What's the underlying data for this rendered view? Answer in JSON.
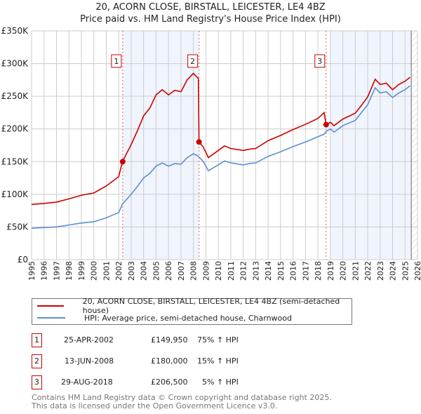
{
  "chart_data": {
    "type": "line",
    "title": "20, ACORN CLOSE, BIRSTALL, LEICESTER, LE4 4BZ",
    "subtitle": "Price paid vs. HM Land Registry's House Price Index (HPI)",
    "xlim": [
      1995,
      2026
    ],
    "ylim": [
      0,
      350000
    ],
    "x_ticks": [
      "1995",
      "1996",
      "1997",
      "1998",
      "1999",
      "2000",
      "2001",
      "2002",
      "2003",
      "2004",
      "2005",
      "2006",
      "2007",
      "2008",
      "2009",
      "2010",
      "2011",
      "2012",
      "2013",
      "2014",
      "2015",
      "2016",
      "2017",
      "2018",
      "2019",
      "2020",
      "2021",
      "2022",
      "2023",
      "2024",
      "2025",
      "2026"
    ],
    "y_ticks": [
      {
        "v": 0,
        "label": "£0"
      },
      {
        "v": 50,
        "label": "£50K"
      },
      {
        "v": 100,
        "label": "£100K"
      },
      {
        "v": 150,
        "label": "£150K"
      },
      {
        "v": 200,
        "label": "£200K"
      },
      {
        "v": 250,
        "label": "£250K"
      },
      {
        "v": 300,
        "label": "£300K"
      },
      {
        "v": 350,
        "label": "£350K"
      }
    ],
    "grid": true,
    "x": [
      1995,
      1996,
      1997,
      1998,
      1999,
      2000,
      2001,
      2002,
      2002.3,
      2003,
      2003.5,
      2004,
      2004.5,
      2005,
      2005.5,
      2006,
      2006.5,
      2007,
      2007.5,
      2008,
      2008.4,
      2008.45,
      2008.8,
      2009.2,
      2010,
      2010.5,
      2011,
      2012,
      2012.5,
      2013,
      2014,
      2015,
      2016,
      2017,
      2018,
      2018.5,
      2018.66,
      2019,
      2019.3,
      2020,
      2021,
      2021.5,
      2022,
      2022.6,
      2023,
      2023.5,
      2024,
      2024.5,
      2025,
      2025.4
    ],
    "series": [
      {
        "name": "20, ACORN CLOSE, BIRSTALL, LEICESTER, LE4 4BZ (semi-detached house)",
        "color": "#cc0000",
        "unit": "£K",
        "values": [
          84.5,
          86,
          88,
          93,
          98.5,
          102,
          112.6,
          127,
          149.95,
          176,
          197,
          220,
          232,
          252,
          260,
          252,
          259,
          257,
          275,
          285,
          277,
          180,
          172,
          156,
          167,
          174,
          170,
          167,
          169,
          170,
          182,
          190,
          199,
          207,
          216,
          225,
          206.5,
          210,
          205,
          215,
          224,
          236,
          249,
          276,
          268,
          270,
          260,
          268,
          273,
          279
        ]
      },
      {
        "name": "HPI: Average price, semi-detached house, Charnwood",
        "color": "#5b8fd4",
        "unit": "£K",
        "values": [
          48,
          49,
          50,
          53,
          56,
          58,
          64,
          72,
          85,
          100,
          112,
          125,
          132,
          143,
          148,
          143,
          147,
          146,
          156,
          162,
          158,
          157,
          150,
          136,
          145,
          151,
          148,
          145,
          147,
          148,
          158,
          165,
          173,
          180,
          188,
          192,
          196,
          200,
          195,
          205,
          213,
          225,
          237,
          263,
          255,
          257,
          248,
          255,
          260,
          266
        ]
      }
    ],
    "sales": [
      {
        "id": "1",
        "year": 2002.32,
        "value": 149.95,
        "date": "25-APR-2002",
        "price": "£149,950",
        "hpi": "75% ↑ HPI"
      },
      {
        "id": "2",
        "year": 2008.45,
        "value": 180,
        "date": "13-JUN-2008",
        "price": "£180,000",
        "hpi": "15% ↑ HPI"
      },
      {
        "id": "3",
        "year": 2018.66,
        "value": 206.5,
        "date": "29-AUG-2018",
        "price": "£206,500",
        "hpi": "5% ↑ HPI"
      }
    ],
    "shaded_ranges": [
      [
        2002.32,
        2008.45
      ],
      [
        2019.0,
        2025.5
      ]
    ],
    "forecast_hatch_from": 2025.5
  },
  "footer": {
    "line1": "Contains HM Land Registry data © Crown copyright and database right 2025.",
    "line2": "This data is licensed under the Open Government Licence v3.0."
  }
}
